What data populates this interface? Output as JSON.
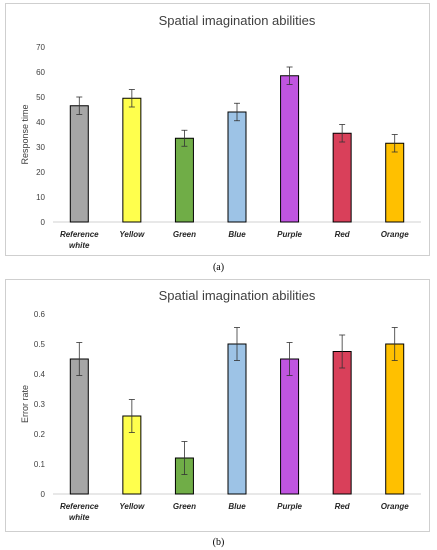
{
  "chart_data": [
    {
      "panel_label": "(a)",
      "type": "bar",
      "title": "Spatial imagination abilities",
      "xlabel": "",
      "ylabel": "Response time",
      "ylim": [
        0,
        70
      ],
      "yticks": [
        0,
        10,
        20,
        30,
        40,
        50,
        60,
        70
      ],
      "grid": false,
      "categories": [
        [
          "Reference",
          "white"
        ],
        [
          "Yellow"
        ],
        [
          "Green"
        ],
        [
          "Blue"
        ],
        [
          "Purple"
        ],
        [
          "Red"
        ],
        [
          "Orange"
        ]
      ],
      "values": [
        46.5,
        49.5,
        33.5,
        44,
        58.5,
        35.5,
        31.5
      ],
      "errors": [
        3.5,
        3.5,
        3.2,
        3.5,
        3.5,
        3.5,
        3.5
      ],
      "colors": [
        "#a6a6a6",
        "#ffff4d",
        "#70ad47",
        "#9dc3e6",
        "#c055e0",
        "#d9405a",
        "#ffc000"
      ]
    },
    {
      "panel_label": "(b)",
      "type": "bar",
      "title": "Spatial imagination abilities",
      "xlabel": "",
      "ylabel": "Error rate",
      "ylim": [
        0,
        0.6
      ],
      "yticks": [
        "0",
        "0.1",
        "0.2",
        "0.3",
        "0.4",
        "0.5",
        "0.6"
      ],
      "grid": false,
      "categories": [
        [
          "Reference",
          "white"
        ],
        [
          "Yellow"
        ],
        [
          "Green"
        ],
        [
          "Blue"
        ],
        [
          "Purple"
        ],
        [
          "Red"
        ],
        [
          "Orange"
        ]
      ],
      "values": [
        0.45,
        0.26,
        0.12,
        0.5,
        0.45,
        0.475,
        0.5
      ],
      "errors": [
        0.055,
        0.055,
        0.055,
        0.055,
        0.055,
        0.055,
        0.055
      ],
      "colors": [
        "#a6a6a6",
        "#ffff4d",
        "#70ad47",
        "#9dc3e6",
        "#c055e0",
        "#d9405a",
        "#ffc000"
      ]
    }
  ]
}
